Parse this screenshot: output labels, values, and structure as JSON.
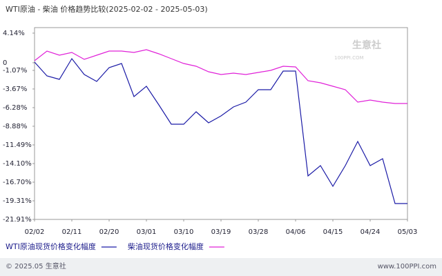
{
  "chart_data": {
    "type": "line",
    "title": "WTI原油 - 柴油 价格趋势比较(2025-02-02 - 2025-05-03)",
    "categories": [
      "02/02",
      null,
      null,
      "02/11",
      null,
      null,
      "02/20",
      null,
      null,
      "03/01",
      null,
      null,
      "03/10",
      null,
      null,
      "03/19",
      null,
      null,
      "03/28",
      null,
      null,
      "04/06",
      null,
      null,
      "04/15",
      null,
      null,
      "04/24",
      null,
      null,
      "05/03"
    ],
    "series": [
      {
        "name": "WTI原油现货价格变化幅度",
        "color": "#1a1aa6",
        "values": [
          0.09,
          -1.84,
          -2.32,
          0.57,
          -1.65,
          -2.61,
          -0.68,
          -0.11,
          -4.74,
          -3.29,
          -5.89,
          -8.6,
          -8.6,
          -6.86,
          -8.4,
          -7.44,
          -6.18,
          -5.51,
          -3.77,
          -3.77,
          -1.17,
          -1.17,
          -15.83,
          -14.38,
          -17.28,
          -14.38,
          -11.01,
          -14.38,
          -13.42,
          -19.69,
          -19.69
        ]
      },
      {
        "name": "柴油现货价格变化幅度",
        "color": "#e020d8",
        "values": [
          0.28,
          1.63,
          1.05,
          1.44,
          0.47,
          1.05,
          1.63,
          1.63,
          1.44,
          1.82,
          1.25,
          0.57,
          -0.11,
          -0.49,
          -1.26,
          -1.65,
          -1.46,
          -1.65,
          -1.36,
          -1.07,
          -0.49,
          -0.59,
          -2.52,
          -2.81,
          -3.29,
          -3.77,
          -5.51,
          -5.22,
          -5.51,
          -5.7,
          -5.7
        ]
      }
    ],
    "ylim": [
      -21.91,
      4.14
    ],
    "yticks": [
      {
        "value": 4.14,
        "label": "4.14%"
      },
      0,
      {
        "value": -1.07,
        "label": "-1.07%"
      },
      {
        "value": -3.67,
        "label": "-3.67%"
      },
      {
        "value": -6.28,
        "label": "-6.28%"
      },
      {
        "value": -8.88,
        "label": "-8.88%"
      },
      {
        "value": -11.49,
        "label": "-11.49%"
      },
      {
        "value": -14.1,
        "label": "-14.10%"
      },
      {
        "value": -16.7,
        "label": "-16.70%"
      },
      {
        "value": -19.31,
        "label": "-19.31%"
      },
      {
        "value": -21.91,
        "label": "-21.91%"
      }
    ],
    "watermark": "生意社",
    "watermark_sub": "100PPI.COM",
    "footer_left": "© 2025.05 生意社",
    "footer_right": "www.100PPI.com"
  }
}
